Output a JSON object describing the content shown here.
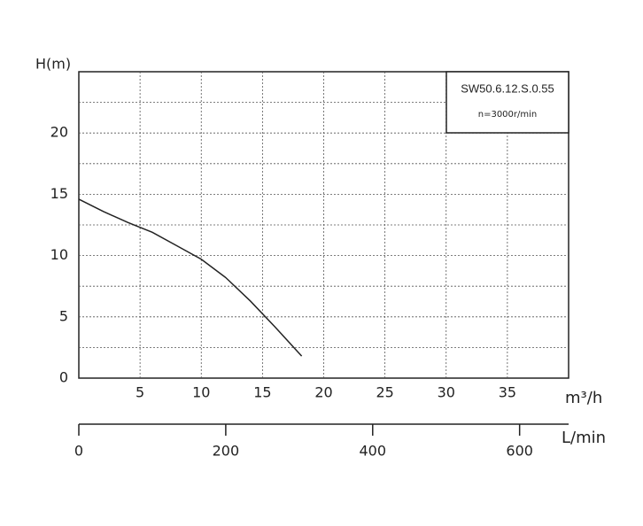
{
  "chart_data": {
    "type": "line",
    "y_label": "H(m)",
    "x_label": "m³/h",
    "x2_label": "L/min",
    "annotations": [
      "SW50.6.12.S.0.55",
      "n=3000r/min"
    ],
    "x": [
      0,
      2,
      4,
      6,
      8,
      10,
      12,
      14,
      16,
      18.2
    ],
    "series": [
      {
        "color": "#222222",
        "values": [
          14.6,
          13.6,
          12.7,
          11.9,
          10.8,
          9.7,
          8.2,
          6.3,
          4.2,
          1.8
        ]
      }
    ],
    "xlim": [
      0,
      40
    ],
    "xticks": [
      5,
      10,
      15,
      20,
      25,
      30,
      35
    ],
    "ylim": [
      0,
      25
    ],
    "yticks": [
      0,
      5,
      10,
      15,
      20
    ],
    "y_minor_grid": [
      2.5,
      7.5,
      12.5,
      17.5,
      22.5
    ],
    "x2lim": [
      0,
      666.7
    ],
    "x2ticks": [
      0,
      200,
      400,
      600
    ],
    "grid": true
  }
}
